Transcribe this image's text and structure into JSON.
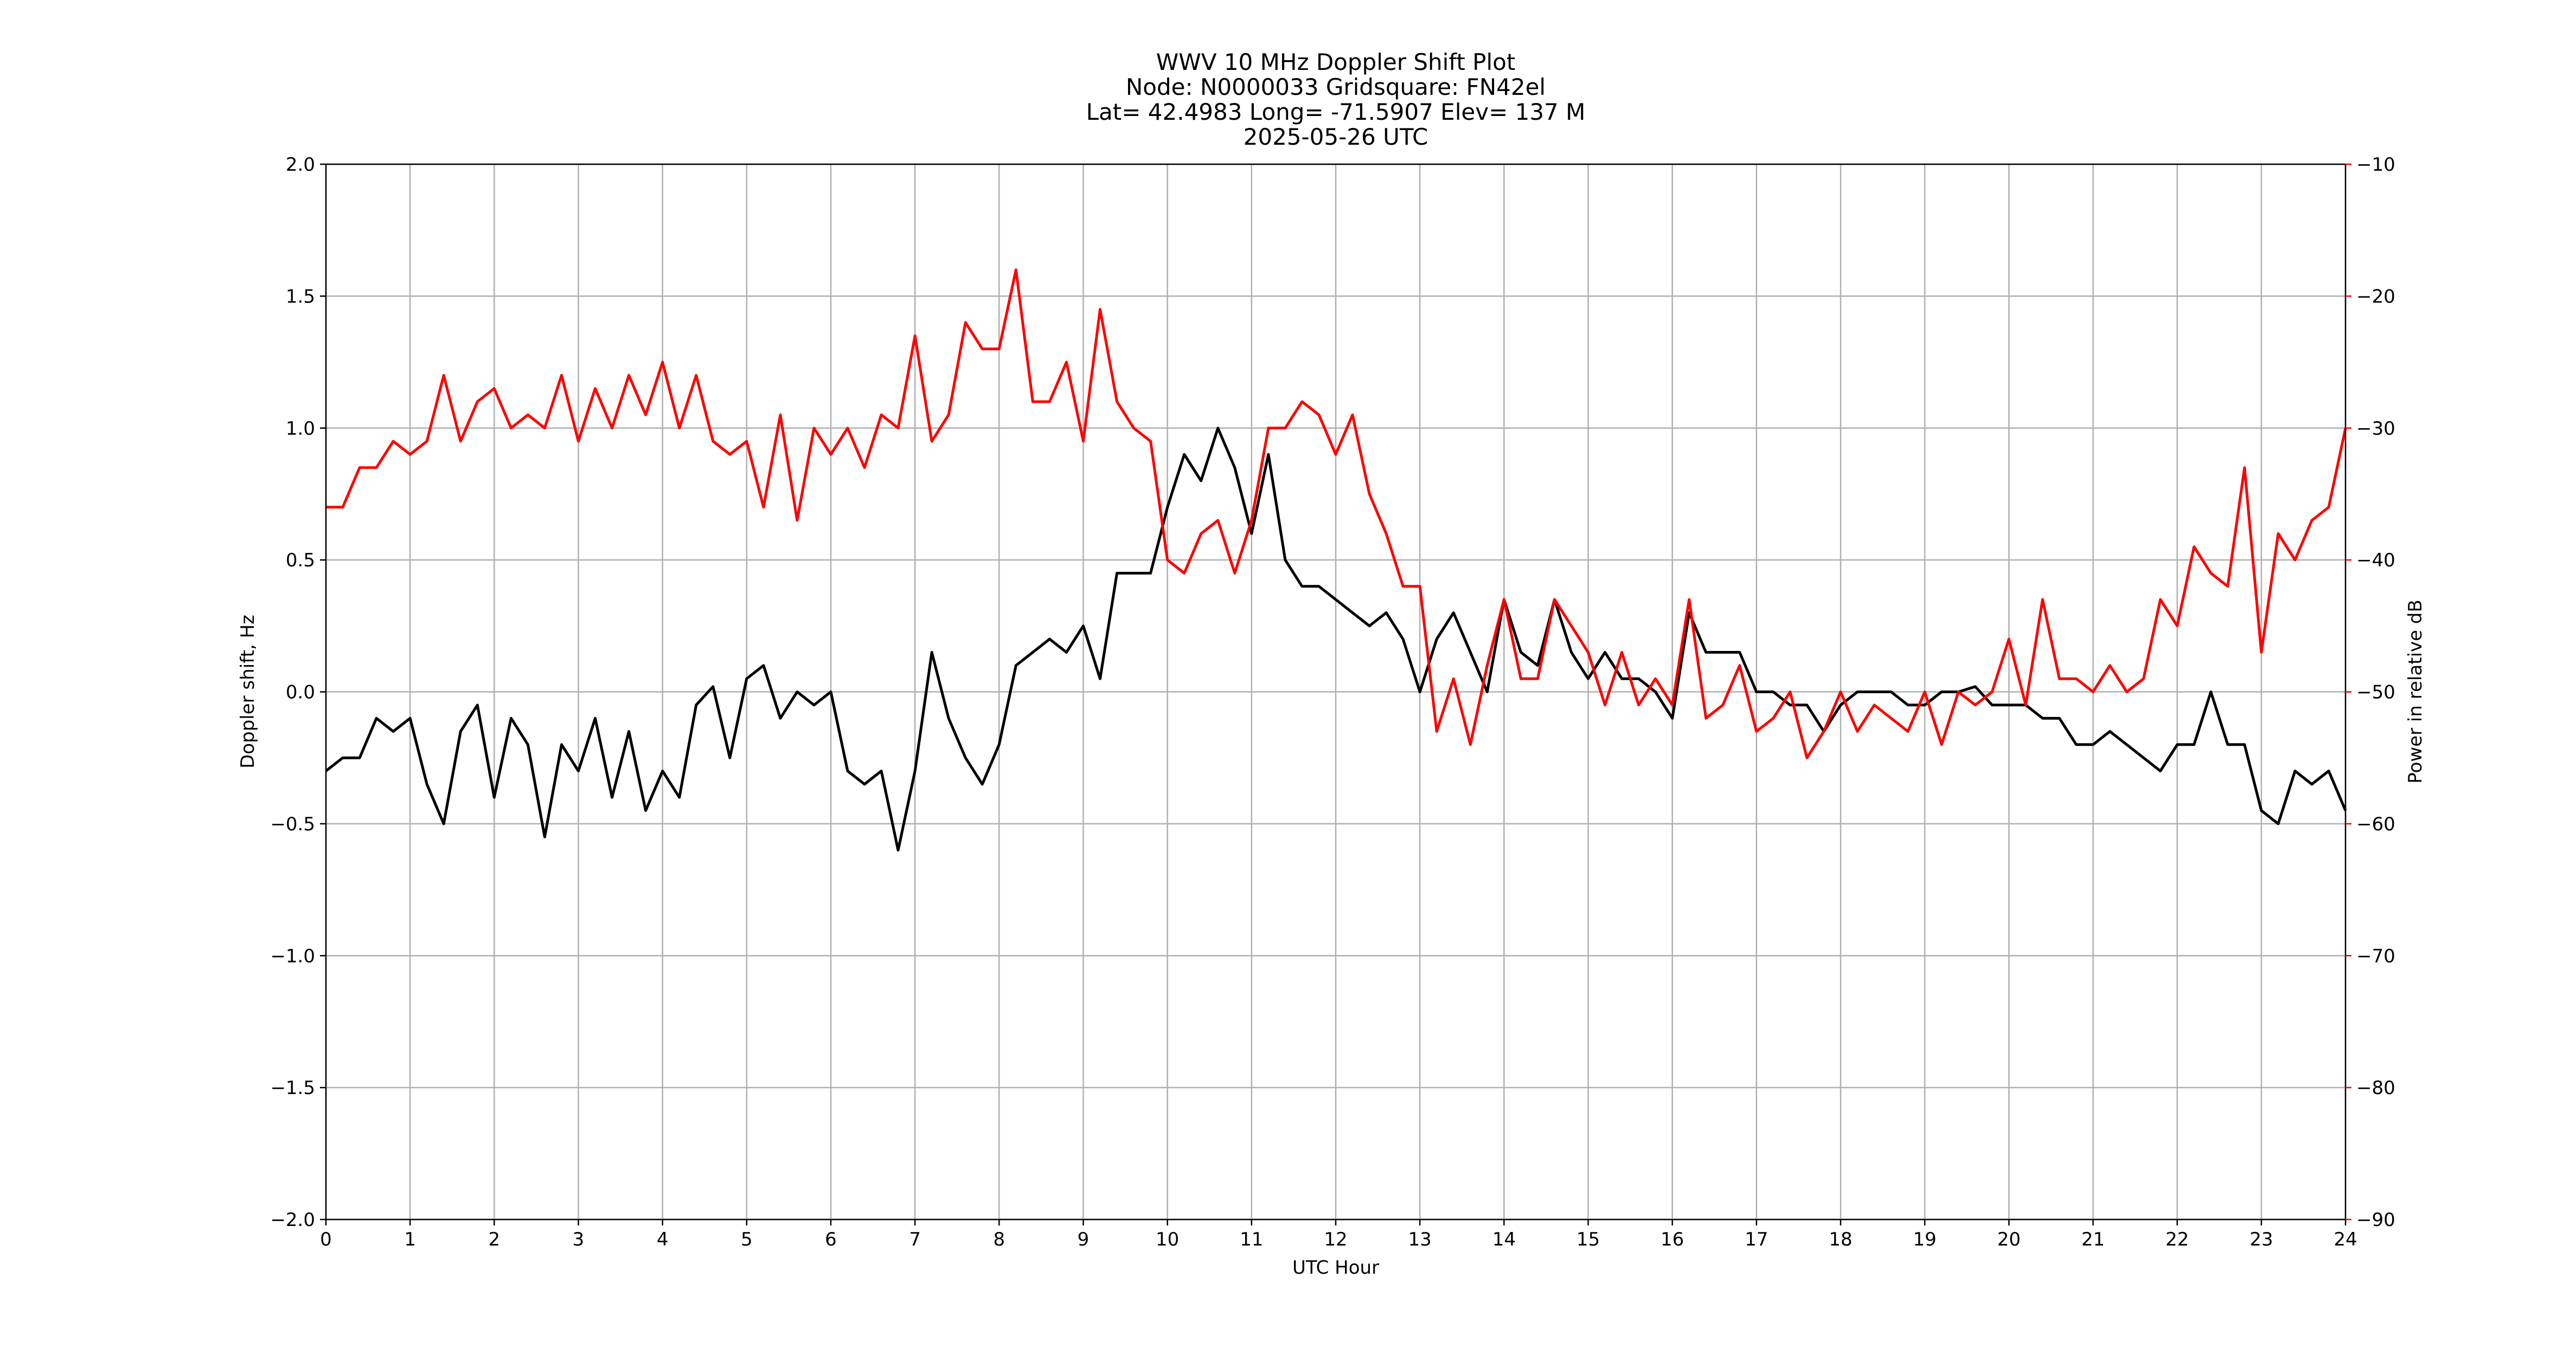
{
  "chart_data": {
    "type": "line",
    "title_lines": [
      "WWV 10 MHz Doppler Shift Plot",
      "Node:  N0000033     Gridsquare:  FN42el",
      "Lat= 42.4983    Long= -71.5907    Elev= 137 M",
      "2025-05-26  UTC"
    ],
    "x_label": "UTC Hour",
    "y_label": "Doppler shift, Hz",
    "y2_label": "Power in relative dB",
    "x": [
      0,
      0.2,
      0.4,
      0.6,
      0.8,
      1,
      1.2,
      1.4,
      1.6,
      1.8,
      2,
      2.2,
      2.4,
      2.6,
      2.8,
      3,
      3.2,
      3.4,
      3.6,
      3.8,
      4,
      4.2,
      4.4,
      4.6,
      4.8,
      5,
      5.2,
      5.4,
      5.6,
      5.8,
      6,
      6.2,
      6.4,
      6.6,
      6.8,
      7,
      7.2,
      7.4,
      7.6,
      7.8,
      8,
      8.2,
      8.4,
      8.6,
      8.8,
      9,
      9.2,
      9.4,
      9.6,
      9.8,
      10,
      10.2,
      10.4,
      10.6,
      10.8,
      11,
      11.2,
      11.4,
      11.6,
      11.8,
      12,
      12.2,
      12.4,
      12.6,
      12.8,
      13,
      13.2,
      13.4,
      13.6,
      13.8,
      14,
      14.2,
      14.4,
      14.6,
      14.8,
      15,
      15.2,
      15.4,
      15.6,
      15.8,
      16,
      16.2,
      16.4,
      16.6,
      16.8,
      17,
      17.2,
      17.4,
      17.6,
      17.8,
      18,
      18.2,
      18.4,
      18.6,
      18.8,
      19,
      19.2,
      19.4,
      19.6,
      19.8,
      20,
      20.2,
      20.4,
      20.6,
      20.8,
      21,
      21.2,
      21.4,
      21.6,
      21.8,
      22,
      22.2,
      22.4,
      22.6,
      22.8,
      23,
      23.2,
      23.4,
      23.6,
      23.8,
      24
    ],
    "series": [
      {
        "name": "Doppler shift",
        "color": "#000000",
        "axis": "y",
        "values": [
          -0.3,
          -0.25,
          -0.25,
          -0.1,
          -0.15,
          -0.1,
          -0.35,
          -0.5,
          -0.15,
          -0.05,
          -0.4,
          -0.1,
          -0.2,
          -0.55,
          -0.2,
          -0.3,
          -0.1,
          -0.4,
          -0.15,
          -0.45,
          -0.3,
          -0.4,
          -0.05,
          0.02,
          -0.25,
          0.05,
          0.1,
          -0.1,
          0,
          -0.05,
          0,
          -0.3,
          -0.35,
          -0.3,
          -0.6,
          -0.3,
          0.15,
          -0.1,
          -0.25,
          -0.35,
          -0.2,
          0.1,
          0.15,
          0.2,
          0.15,
          0.25,
          0.05,
          0.45,
          0.45,
          0.45,
          0.7,
          0.9,
          0.8,
          1,
          0.85,
          0.6,
          0.9,
          0.5,
          0.4,
          0.4,
          0.35,
          0.3,
          0.25,
          0.3,
          0.2,
          0,
          0.2,
          0.3,
          0.15,
          0,
          0.35,
          0.15,
          0.1,
          0.35,
          0.15,
          0.05,
          0.15,
          0.05,
          0.05,
          0,
          -0.1,
          0.3,
          0.15,
          0.15,
          0.15,
          0,
          0,
          -0.05,
          -0.05,
          -0.15,
          -0.05,
          0,
          0,
          0,
          -0.05,
          -0.05,
          0,
          0,
          0.02,
          -0.05,
          -0.05,
          -0.05,
          -0.1,
          -0.1,
          -0.2,
          -0.2,
          -0.15,
          -0.2,
          -0.25,
          -0.3,
          -0.2,
          -0.2,
          0,
          -0.2,
          -0.2,
          -0.45,
          -0.5,
          -0.3,
          -0.35,
          -0.3,
          -0.45
        ]
      },
      {
        "name": "Power",
        "color": "#ff0000",
        "axis": "y2",
        "values": [
          -36,
          -36,
          -33,
          -33,
          -31,
          -32,
          -31,
          -26,
          -31,
          -28,
          -27,
          -30,
          -29,
          -30,
          -26,
          -31,
          -27,
          -30,
          -26,
          -29,
          -25,
          -30,
          -26,
          -31,
          -32,
          -31,
          -36,
          -29,
          -37,
          -30,
          -32,
          -30,
          -33,
          -29,
          -30,
          -23,
          -31,
          -29,
          -22,
          -24,
          -24,
          -18,
          -28,
          -28,
          -25,
          -31,
          -21,
          -28,
          -30,
          -31,
          -40,
          -41,
          -38,
          -37,
          -41,
          -37,
          -30,
          -30,
          -28,
          -29,
          -32,
          -29,
          -35,
          -38,
          -42,
          -42,
          -53,
          -49,
          -54,
          -48,
          -43,
          -49,
          -49,
          -43,
          -45,
          -47,
          -51,
          -47,
          -51,
          -49,
          -51,
          -43,
          -52,
          -51,
          -48,
          -53,
          -52,
          -50,
          -55,
          -53,
          -50,
          -53,
          -51,
          -52,
          -53,
          -50,
          -54,
          -50,
          -51,
          -50,
          -46,
          -51,
          -43,
          -49,
          -49,
          -50,
          -48,
          -50,
          -49,
          -43,
          -45,
          -39,
          -41,
          -42,
          -33,
          -47,
          -38,
          -40,
          -37,
          -36,
          -30
        ]
      }
    ],
    "xlim": [
      0,
      24
    ],
    "xticks": [
      0,
      1,
      2,
      3,
      4,
      5,
      6,
      7,
      8,
      9,
      10,
      11,
      12,
      13,
      14,
      15,
      16,
      17,
      18,
      19,
      20,
      21,
      22,
      23,
      24
    ],
    "ylim": [
      -2,
      2
    ],
    "yticks": [
      {
        "value": -2,
        "label": "−2.0"
      },
      {
        "value": -1.5,
        "label": "−1.5"
      },
      {
        "value": -1,
        "label": "−1.0"
      },
      {
        "value": -0.5,
        "label": "−0.5"
      },
      {
        "value": 0,
        "label": "0.0"
      },
      {
        "value": 0.5,
        "label": "0.5"
      },
      {
        "value": 1,
        "label": "1.0"
      },
      {
        "value": 1.5,
        "label": "1.5"
      },
      {
        "value": 2,
        "label": "2.0"
      }
    ],
    "y2lim": [
      -90,
      -10
    ],
    "y2ticks": [
      {
        "value": -90,
        "label": "−90"
      },
      {
        "value": -80,
        "label": "−80"
      },
      {
        "value": -70,
        "label": "−70"
      },
      {
        "value": -60,
        "label": "−60"
      },
      {
        "value": -50,
        "label": "−50"
      },
      {
        "value": -40,
        "label": "−40"
      },
      {
        "value": -30,
        "label": "−30"
      },
      {
        "value": -20,
        "label": "−20"
      },
      {
        "value": -10,
        "label": "−10"
      }
    ],
    "y2_color": "#ff0000",
    "grid": true
  }
}
